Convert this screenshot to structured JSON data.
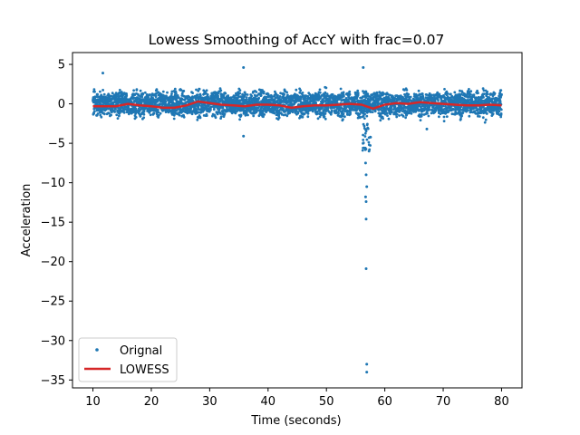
{
  "chart_data": {
    "type": "scatter",
    "title": "Lowess Smoothing of AccY with frac=0.07",
    "xlabel": "Time (seconds)",
    "ylabel": "Acceleration",
    "xlim": [
      6.5,
      83.5
    ],
    "ylim": [
      -36,
      6.5
    ],
    "x_ticks": [
      10,
      20,
      30,
      40,
      50,
      60,
      70,
      80
    ],
    "y_ticks": [
      5,
      0,
      -5,
      -10,
      -15,
      -20,
      -25,
      -30,
      -35
    ],
    "grid": false,
    "legend_position": "lower-left",
    "series": [
      {
        "name": "Orignal",
        "kind": "scatter",
        "color": "#1f77b4",
        "x_range": [
          10,
          80
        ],
        "typical_band": [
          -2.5,
          2.5
        ],
        "outliers": [
          {
            "x": 11.7,
            "y": 3.9
          },
          {
            "x": 35.8,
            "y": 4.6
          },
          {
            "x": 35.8,
            "y": -4.1
          },
          {
            "x": 56.3,
            "y": 4.6
          },
          {
            "x": 57.3,
            "y": -6.0
          },
          {
            "x": 56.7,
            "y": -7.5
          },
          {
            "x": 56.8,
            "y": -9.0
          },
          {
            "x": 56.9,
            "y": -10.5
          },
          {
            "x": 56.7,
            "y": -11.8
          },
          {
            "x": 56.8,
            "y": -12.4
          },
          {
            "x": 56.8,
            "y": -14.6
          },
          {
            "x": 56.8,
            "y": -20.9
          },
          {
            "x": 56.9,
            "y": -33.0
          },
          {
            "x": 56.9,
            "y": -34.0
          },
          {
            "x": 67.2,
            "y": -3.2
          }
        ]
      },
      {
        "name": "LOWESS",
        "kind": "line",
        "color": "#d62728",
        "x": [
          10,
          12,
          14,
          16,
          18,
          20,
          22,
          24,
          26,
          28,
          30,
          32,
          34,
          36,
          38,
          40,
          42,
          44,
          46,
          48,
          50,
          52,
          54,
          56,
          58,
          60,
          62,
          64,
          66,
          68,
          70,
          72,
          74,
          76,
          78,
          80
        ],
        "y": [
          -0.3,
          -0.3,
          -0.3,
          0.0,
          -0.2,
          -0.3,
          -0.5,
          -0.5,
          -0.2,
          0.3,
          0.1,
          -0.1,
          -0.2,
          -0.3,
          -0.1,
          -0.1,
          -0.2,
          -0.5,
          -0.3,
          -0.2,
          -0.2,
          -0.1,
          0.0,
          -0.1,
          -0.6,
          -0.1,
          0.1,
          0.0,
          0.2,
          0.1,
          0.0,
          -0.1,
          -0.2,
          -0.2,
          -0.1,
          -0.2
        ]
      }
    ]
  }
}
